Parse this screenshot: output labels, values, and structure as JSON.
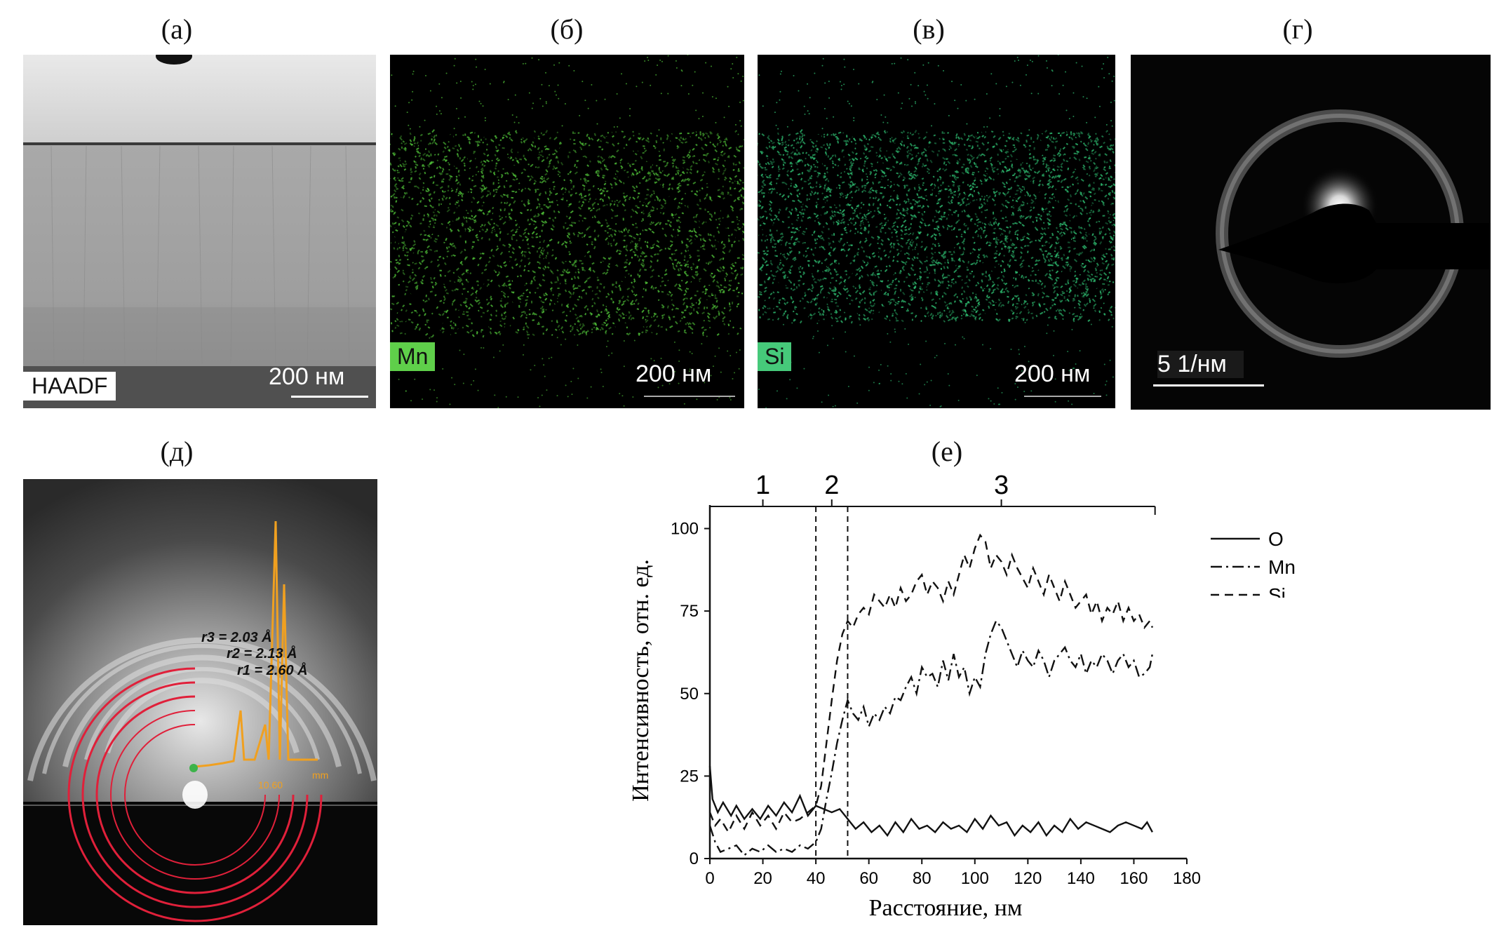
{
  "panels": {
    "a": {
      "label": "(а)",
      "badge": "HAADF",
      "scale": "200 нм"
    },
    "b": {
      "label": "(б)",
      "badge": "Mn",
      "scale": "200 нм",
      "badge_color": "#5fcf4a"
    },
    "c": {
      "label": "(в)",
      "badge": "Si",
      "scale": "200 нм",
      "badge_color": "#46c97a"
    },
    "d": {
      "label": "(г)",
      "scale": "5 1/нм"
    },
    "e": {
      "label": "(д)",
      "r3": "r3 = 2.03 Å",
      "r2": "r2 = 2.13 Å",
      "r1": "r1 = 2.60 Å",
      "unit": "mm",
      "tick": "10.60"
    },
    "f": {
      "label": "(е)"
    }
  },
  "chart_data": {
    "type": "line",
    "xlabel": "Расстояние, нм",
    "ylabel": "Интенсивность, отн. ед.",
    "xlim": [
      0,
      180
    ],
    "ylim": [
      0,
      105
    ],
    "xticks": [
      0,
      20,
      40,
      60,
      80,
      100,
      120,
      140,
      160,
      180
    ],
    "yticks": [
      0,
      25,
      50,
      75,
      100
    ],
    "regions": [
      {
        "label": "1",
        "from": 0,
        "to": 40
      },
      {
        "label": "2",
        "from": 40,
        "to": 52
      },
      {
        "label": "3",
        "from": 52,
        "to": 168
      }
    ],
    "boundaries": [
      40,
      52
    ],
    "legend": [
      "O",
      "Mn",
      "Si"
    ],
    "series": [
      {
        "name": "O",
        "style": "solid",
        "x": [
          0,
          1,
          3,
          5,
          8,
          10,
          13,
          16,
          19,
          22,
          25,
          28,
          31,
          34,
          37,
          40,
          43,
          46,
          49,
          52,
          55,
          58,
          61,
          64,
          67,
          70,
          73,
          76,
          79,
          82,
          85,
          88,
          91,
          94,
          97,
          100,
          103,
          106,
          109,
          112,
          115,
          118,
          121,
          124,
          127,
          130,
          133,
          136,
          139,
          142,
          145,
          148,
          151,
          154,
          157,
          160,
          163,
          165,
          167
        ],
        "y": [
          28,
          18,
          14,
          17,
          13,
          16,
          12,
          15,
          12,
          16,
          13,
          17,
          14,
          19,
          13,
          16,
          15,
          14,
          15,
          12,
          9,
          11,
          8,
          10,
          7,
          11,
          8,
          12,
          9,
          10,
          8,
          11,
          9,
          10,
          8,
          12,
          9,
          13,
          10,
          11,
          7,
          10,
          8,
          11,
          7,
          10,
          8,
          12,
          9,
          11,
          10,
          9,
          8,
          10,
          11,
          10,
          9,
          11,
          8
        ]
      },
      {
        "name": "Mn",
        "style": "dashdot",
        "x": [
          0,
          2,
          4,
          7,
          10,
          13,
          16,
          19,
          22,
          25,
          28,
          31,
          34,
          37,
          40,
          42,
          44,
          46,
          48,
          50,
          52,
          54,
          56,
          58,
          60,
          62,
          64,
          66,
          68,
          70,
          72,
          74,
          76,
          78,
          80,
          82,
          84,
          86,
          88,
          90,
          92,
          94,
          96,
          98,
          100,
          102,
          104,
          106,
          108,
          110,
          112,
          114,
          116,
          118,
          120,
          122,
          124,
          126,
          128,
          130,
          132,
          134,
          136,
          138,
          140,
          142,
          144,
          146,
          148,
          150,
          152,
          154,
          156,
          158,
          160,
          162,
          164,
          166,
          167
        ],
        "y": [
          10,
          5,
          2,
          3,
          4,
          1,
          3,
          2,
          4,
          2,
          3,
          2,
          4,
          3,
          5,
          9,
          18,
          26,
          35,
          42,
          48,
          44,
          42,
          46,
          40,
          44,
          42,
          46,
          44,
          49,
          48,
          52,
          55,
          50,
          58,
          55,
          56,
          52,
          60,
          54,
          62,
          55,
          58,
          50,
          55,
          52,
          62,
          68,
          72,
          70,
          66,
          62,
          58,
          63,
          60,
          58,
          63,
          60,
          55,
          60,
          62,
          64,
          60,
          58,
          62,
          56,
          60,
          58,
          62,
          60,
          56,
          60,
          62,
          58,
          60,
          55,
          56,
          58,
          62
        ]
      },
      {
        "name": "Si",
        "style": "dashed",
        "x": [
          0,
          2,
          4,
          7,
          10,
          13,
          16,
          19,
          22,
          25,
          28,
          31,
          34,
          37,
          40,
          42,
          44,
          46,
          48,
          50,
          52,
          54,
          56,
          58,
          60,
          62,
          64,
          66,
          68,
          70,
          72,
          74,
          76,
          78,
          80,
          82,
          84,
          86,
          88,
          90,
          92,
          94,
          96,
          98,
          100,
          102,
          104,
          106,
          108,
          110,
          112,
          114,
          116,
          118,
          120,
          122,
          124,
          126,
          128,
          130,
          132,
          134,
          136,
          138,
          140,
          142,
          144,
          146,
          148,
          150,
          152,
          154,
          156,
          158,
          160,
          162,
          164,
          166,
          167
        ],
        "y": [
          14,
          10,
          12,
          8,
          13,
          9,
          14,
          10,
          13,
          9,
          14,
          11,
          12,
          14,
          16,
          22,
          35,
          48,
          60,
          68,
          72,
          70,
          74,
          76,
          74,
          80,
          78,
          76,
          80,
          76,
          82,
          78,
          80,
          84,
          86,
          80,
          84,
          82,
          78,
          84,
          80,
          86,
          92,
          88,
          94,
          98,
          96,
          88,
          92,
          90,
          86,
          92,
          88,
          85,
          82,
          88,
          84,
          80,
          86,
          82,
          78,
          84,
          80,
          76,
          78,
          80,
          74,
          78,
          72,
          76,
          74,
          78,
          72,
          76,
          72,
          74,
          70,
          72,
          70
        ]
      }
    ]
  }
}
